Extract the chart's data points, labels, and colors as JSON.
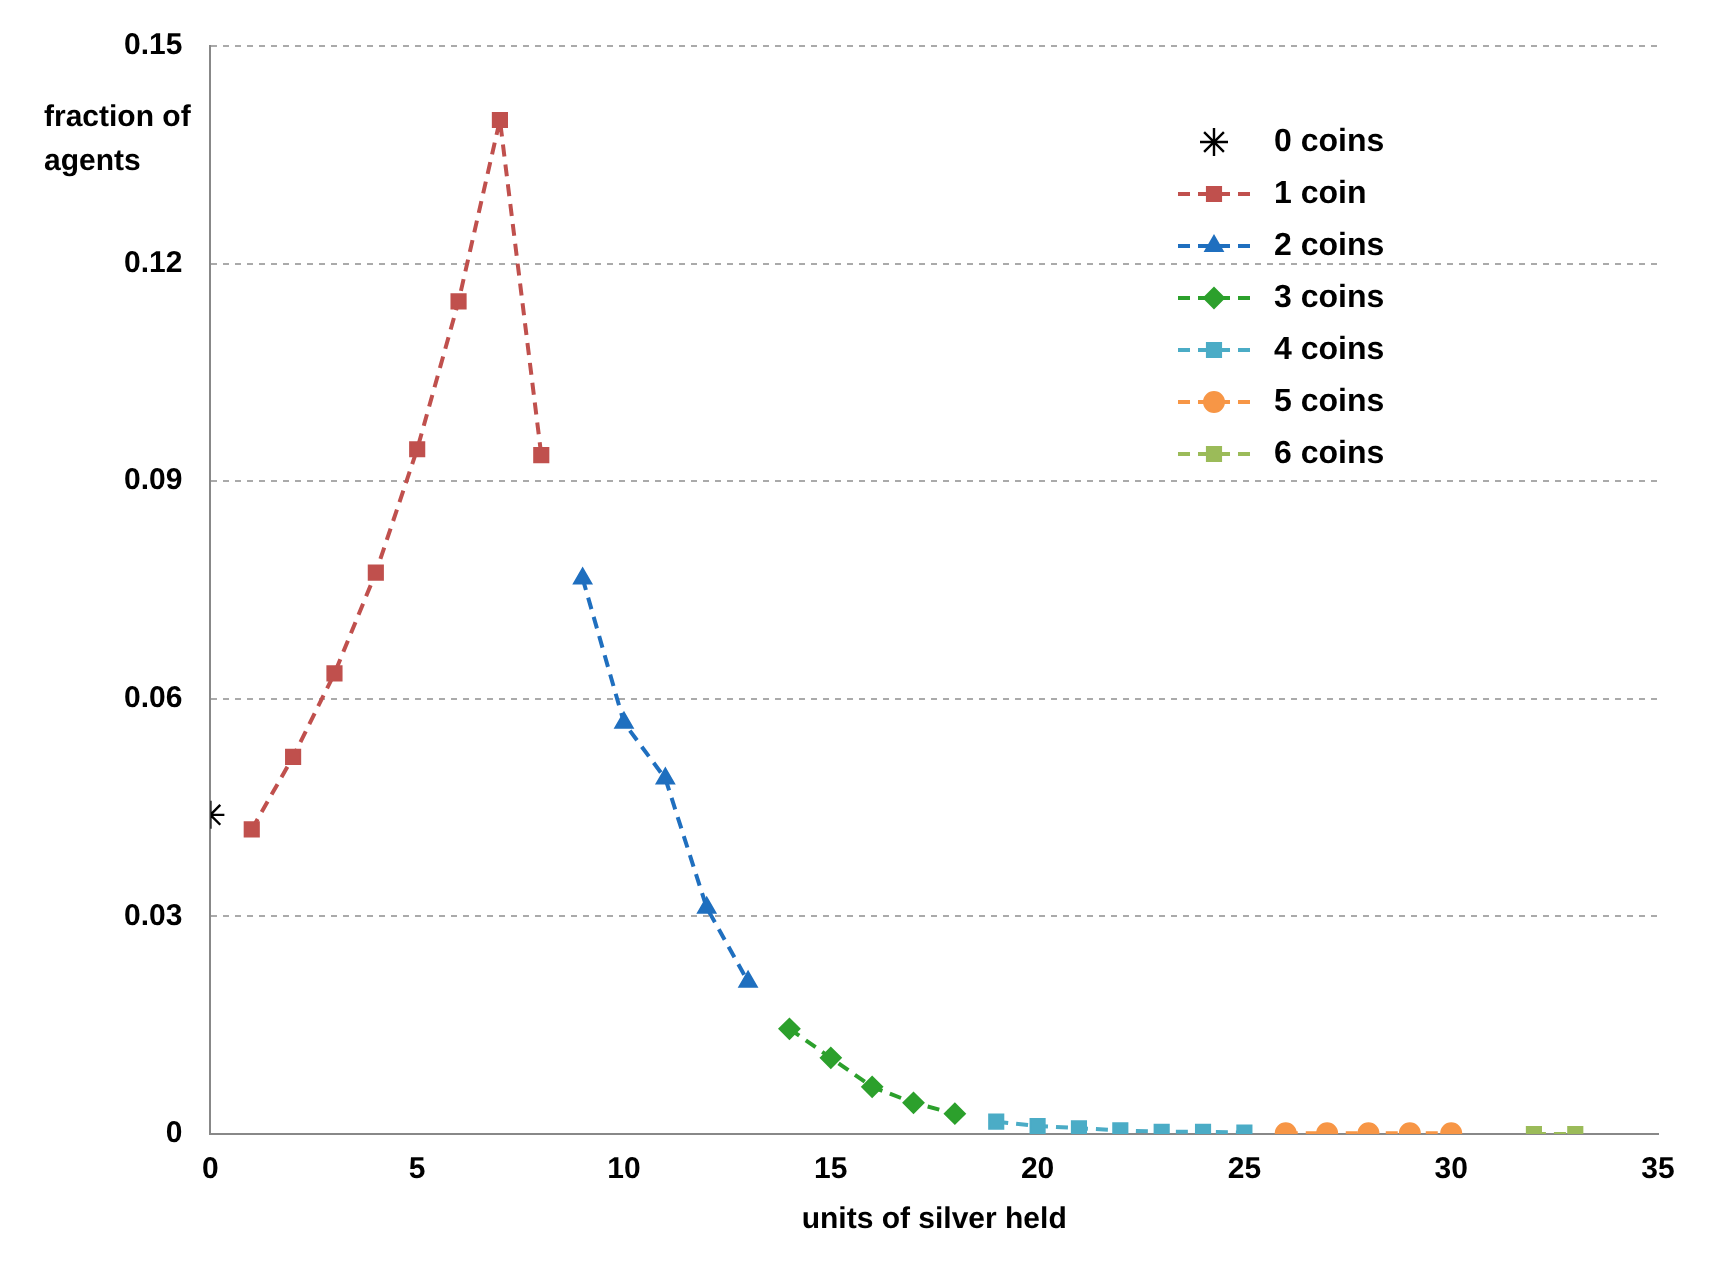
{
  "chart_data": {
    "type": "line",
    "xlabel": "units of silver held",
    "ylabel": "fraction of agents",
    "xlim": [
      0,
      35
    ],
    "xticks": [
      0,
      5,
      10,
      15,
      20,
      25,
      30,
      35
    ],
    "ylim": [
      0,
      0.15
    ],
    "yticks": [
      0,
      0.03,
      0.06,
      0.09,
      0.12,
      0.15
    ],
    "grid": "y",
    "legend": "top right",
    "line_style": "dashed",
    "series": [
      {
        "name": "0 coins",
        "type": "scatter",
        "marker": "cross",
        "color": "#000000",
        "x": [
          0
        ],
        "values": [
          0.044
        ]
      },
      {
        "name": "1 coin",
        "marker": "square",
        "color": "#c0504d",
        "x": [
          1,
          2,
          3,
          4,
          5,
          6,
          7,
          8
        ],
        "values": [
          0.042,
          0.052,
          0.0635,
          0.0774,
          0.0944,
          0.1148,
          0.1398,
          0.0936
        ]
      },
      {
        "name": "2 coins",
        "marker": "triangle",
        "color": "#1f6fbf",
        "x": [
          9,
          10,
          11,
          12,
          13
        ],
        "values": [
          0.0766,
          0.0567,
          0.049,
          0.0312,
          0.021
        ]
      },
      {
        "name": "3 coins",
        "marker": "diamond",
        "color": "#2ca02c",
        "x": [
          14,
          15,
          16,
          17,
          18
        ],
        "values": [
          0.0145,
          0.0105,
          0.0065,
          0.0043,
          0.0028
        ]
      },
      {
        "name": "4 coins",
        "marker": "square",
        "color": "#4bacc6",
        "x": [
          19,
          20,
          21,
          22,
          23,
          24,
          25
        ],
        "values": [
          0.0017,
          0.0011,
          0.0008,
          0.0005,
          0.0003,
          0.0003,
          0.0002
        ]
      },
      {
        "name": "5 coins",
        "marker": "circle",
        "color": "#f79646",
        "x": [
          26,
          27,
          28,
          29,
          30
        ],
        "values": [
          0.0001,
          0.0001,
          0.0001,
          0.0001,
          0.0001
        ]
      },
      {
        "name": "6 coins",
        "marker": "square",
        "color": "#9bbb59",
        "x": [
          32,
          33
        ],
        "values": [
          0,
          0
        ]
      }
    ]
  }
}
